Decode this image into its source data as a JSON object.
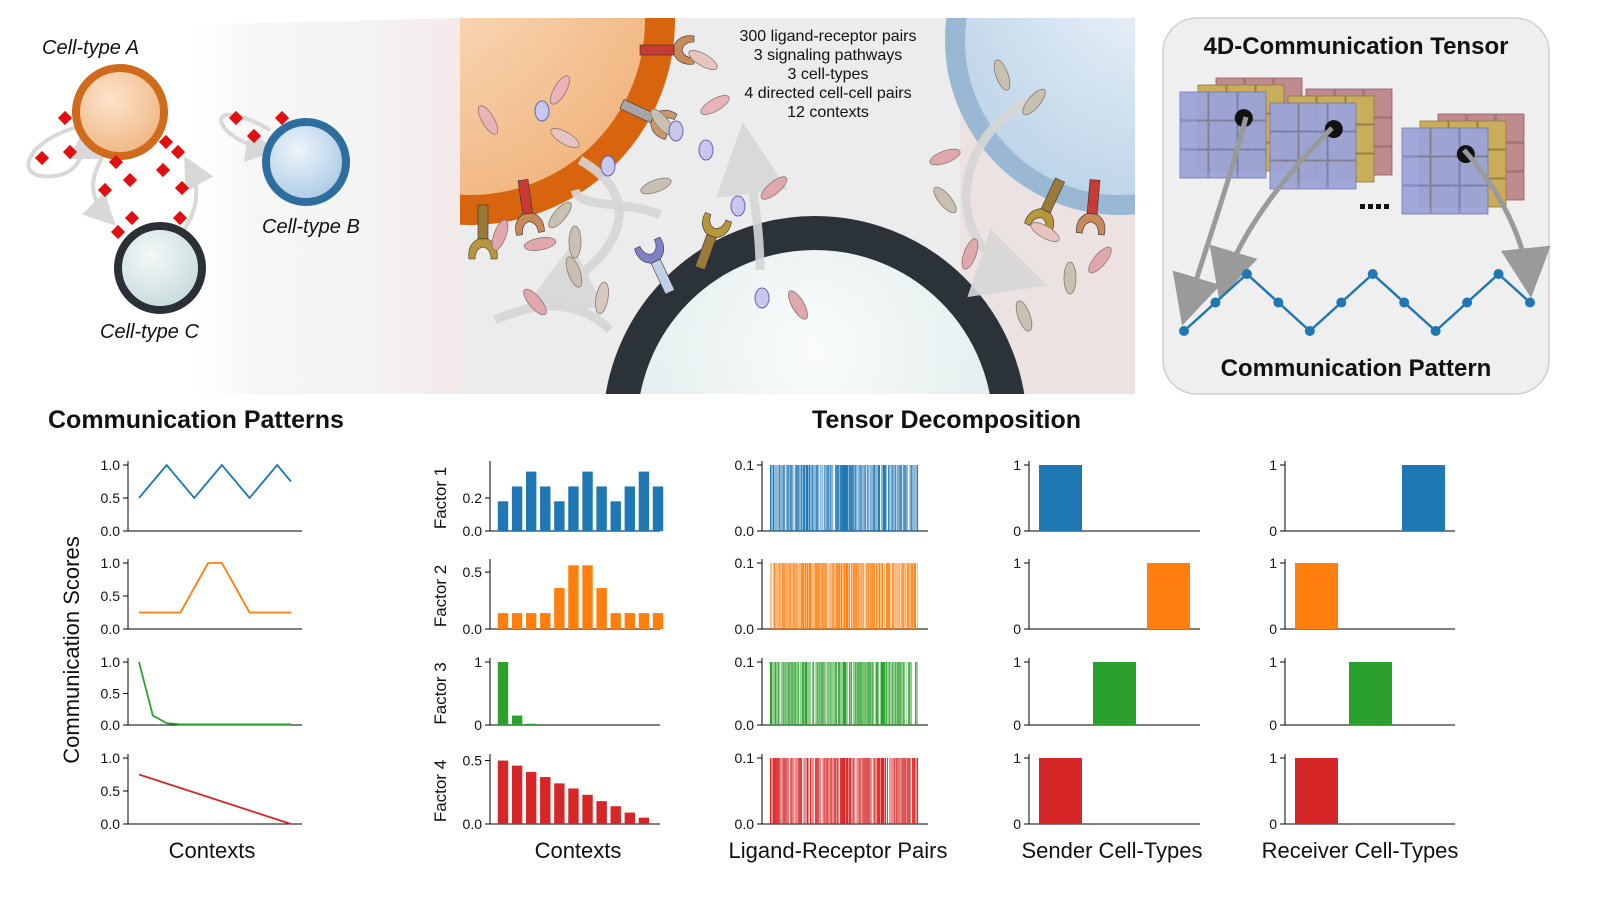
{
  "labels": {
    "cell_type_a": "Cell-type A",
    "cell_type_b": "Cell-type B",
    "cell_type_c": "Cell-type C",
    "tensor_box_title": "4D-Communication Tensor",
    "tensor_box_pattern": "Communication Pattern",
    "info_lines": [
      "300 ligand-receptor pairs",
      "3 signaling pathways",
      "3 cell-types",
      "4 directed cell-cell pairs",
      "12 contexts"
    ],
    "comm_patterns_title": "Communication Patterns",
    "tensor_decomp_title": "Tensor Decomposition",
    "ylabel_comm": "Communication Scores",
    "xlabel_contexts_left": "Contexts",
    "xlabel_contexts_right": "Contexts",
    "xlabel_lr": "Ligand-Receptor Pairs",
    "xlabel_sender": "Sender Cell-Types",
    "xlabel_receiver": "Receiver Cell-Types",
    "factor_labels": [
      "Factor 1",
      "Factor 2",
      "Factor 3",
      "Factor 4"
    ]
  },
  "colors": {
    "factor": [
      "#1f77b4",
      "#ff7f0e",
      "#2ca02c",
      "#d62728"
    ],
    "cell_a": "#e07a2c",
    "cell_b": "#9ec1e0",
    "cell_c": "#2b3238",
    "signal": "#e01010"
  },
  "chart_data": [
    {
      "type": "line",
      "panel": "communication-patterns",
      "ylabel": "Communication Scores",
      "xlabel": "Contexts",
      "yticks": [
        "0.0",
        "0.5",
        "1.0"
      ],
      "series": [
        {
          "values": [
            0.5,
            0.75,
            1.0,
            0.75,
            0.5,
            0.75,
            1.0,
            0.75,
            0.5,
            0.75,
            1.0,
            0.75
          ],
          "ylim": [
            0,
            1
          ]
        },
        {
          "values": [
            0.25,
            0.25,
            0.25,
            0.25,
            0.625,
            1.0,
            1.0,
            0.625,
            0.25,
            0.25,
            0.25,
            0.25
          ],
          "ylim": [
            0,
            1
          ]
        },
        {
          "values": [
            1.0,
            0.15,
            0.03,
            0.01,
            0.01,
            0.01,
            0.01,
            0.01,
            0.01,
            0.01,
            0.01,
            0.01
          ],
          "ylim": [
            0,
            1
          ]
        },
        {
          "values": [
            0.75,
            0.682,
            0.614,
            0.545,
            0.477,
            0.409,
            0.341,
            0.273,
            0.205,
            0.136,
            0.068,
            0.0
          ],
          "ylim": [
            0,
            1
          ]
        }
      ]
    },
    {
      "type": "bar",
      "panel": "factor-contexts",
      "xlabel": "Contexts",
      "series": [
        {
          "name": "Factor 1",
          "values": [
            0.18,
            0.27,
            0.36,
            0.27,
            0.18,
            0.27,
            0.36,
            0.27,
            0.18,
            0.27,
            0.36,
            0.27
          ],
          "ylim": [
            0,
            0.4
          ],
          "yticks": [
            "0.0",
            "0.2"
          ]
        },
        {
          "name": "Factor 2",
          "values": [
            0.14,
            0.14,
            0.14,
            0.14,
            0.36,
            0.56,
            0.56,
            0.36,
            0.14,
            0.14,
            0.14,
            0.14
          ],
          "ylim": [
            0,
            0.58
          ],
          "yticks": [
            "0.0",
            "0.5"
          ]
        },
        {
          "name": "Factor 3",
          "values": [
            1.0,
            0.15,
            0.02,
            0,
            0,
            0,
            0,
            0,
            0,
            0,
            0,
            0
          ],
          "ylim": [
            0,
            1.0
          ],
          "yticks": [
            "0",
            "1"
          ]
        },
        {
          "name": "Factor 4",
          "values": [
            0.5,
            0.46,
            0.41,
            0.37,
            0.32,
            0.28,
            0.23,
            0.18,
            0.14,
            0.09,
            0.05,
            0.0
          ],
          "ylim": [
            0,
            0.52
          ],
          "yticks": [
            "0.0",
            "0.5"
          ]
        }
      ]
    },
    {
      "type": "bar",
      "panel": "factor-ligand-receptor",
      "xlabel": "Ligand-Receptor Pairs",
      "yticks": [
        "0.0",
        "0.1"
      ],
      "ylim": [
        0,
        0.1
      ],
      "n_pairs": 300,
      "note_values": "dense bars, each roughly 0.1 with gaps"
    },
    {
      "type": "bar",
      "panel": "factor-sender",
      "xlabel": "Sender Cell-Types",
      "yticks": [
        "0",
        "1"
      ],
      "series": [
        {
          "values": [
            1,
            0,
            0
          ]
        },
        {
          "values": [
            0,
            0,
            1
          ]
        },
        {
          "values": [
            0,
            1,
            0
          ]
        },
        {
          "values": [
            1,
            0,
            0
          ]
        }
      ]
    },
    {
      "type": "bar",
      "panel": "factor-receiver",
      "xlabel": "Receiver Cell-Types",
      "yticks": [
        "0",
        "1"
      ],
      "series": [
        {
          "values": [
            0,
            0,
            1
          ]
        },
        {
          "values": [
            1,
            0,
            0
          ]
        },
        {
          "values": [
            0,
            1,
            0
          ]
        },
        {
          "values": [
            1,
            0,
            0
          ]
        }
      ]
    }
  ]
}
